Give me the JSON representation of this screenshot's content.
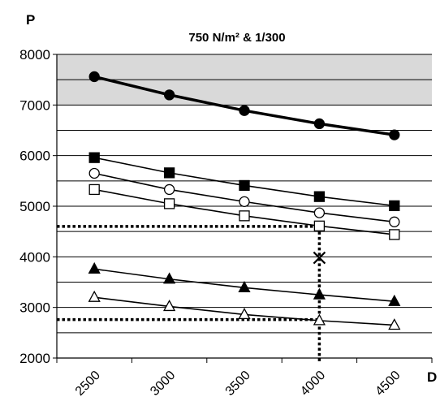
{
  "chart_data": {
    "type": "line",
    "title": "750 N/m² & 1/300",
    "ylabel": "P",
    "xlabel": "D",
    "categories": [
      2500,
      3000,
      3500,
      4000,
      4500
    ],
    "ylim": [
      2000,
      8000
    ],
    "y_ticks": [
      2000,
      3000,
      4000,
      5000,
      6000,
      7000,
      8000
    ],
    "grid": true,
    "shaded_band": [
      7000,
      8000
    ],
    "series": [
      {
        "marker": "filled-circle",
        "values": [
          7560,
          7200,
          6890,
          6630,
          6410
        ]
      },
      {
        "marker": "filled-square",
        "values": [
          5960,
          5660,
          5410,
          5190,
          5010
        ]
      },
      {
        "marker": "open-circle",
        "values": [
          5650,
          5330,
          5090,
          4870,
          4690
        ]
      },
      {
        "marker": "open-square",
        "values": [
          5330,
          5050,
          4810,
          4610,
          4440
        ]
      },
      {
        "marker": "filled-triangle",
        "values": [
          3760,
          3560,
          3390,
          3250,
          3120
        ]
      },
      {
        "marker": "open-triangle",
        "values": [
          3200,
          3020,
          2860,
          2740,
          2650
        ]
      }
    ],
    "annotations": {
      "guide_x": 4000,
      "guide_y": [
        4600,
        2760
      ],
      "cross_marker": {
        "x": 4000,
        "y": 3980
      }
    }
  },
  "colors": {
    "band": "#d9d9d9",
    "line": "#000000",
    "grid": "#000000"
  }
}
